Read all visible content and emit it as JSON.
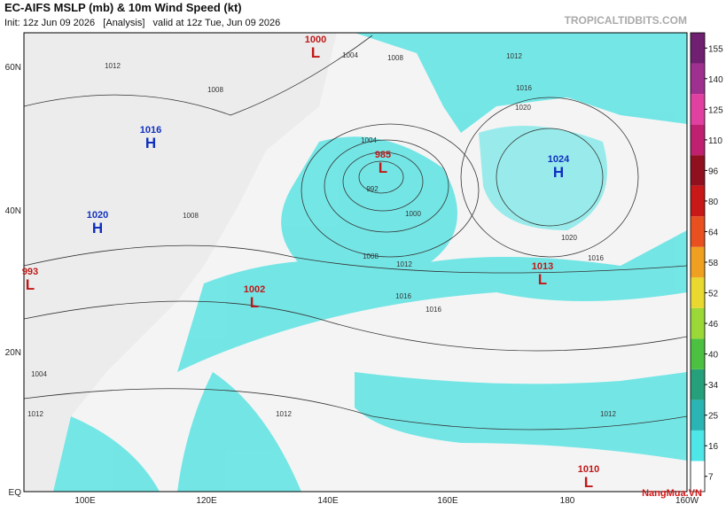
{
  "header": {
    "title": "EC-AIFS MSLP (mb) & 10m Wind Speed (kt)",
    "subtitle": "Init: 12z Jun 09 2026   [Analysis]   valid at 12z Tue, Jun 09 2026",
    "site": "TROPICALTIDBITS.COM"
  },
  "map": {
    "lat_labels": [
      "60N",
      "40N",
      "20N",
      "EQ"
    ],
    "lon_labels": [
      "100E",
      "120E",
      "140E",
      "160E",
      "180",
      "160W"
    ],
    "centers": [
      {
        "value": "1000",
        "letter": "L"
      },
      {
        "value": "1016",
        "letter": "H"
      },
      {
        "value": "985",
        "letter": "L"
      },
      {
        "value": "1024",
        "letter": "H"
      },
      {
        "value": "1020",
        "letter": "H"
      },
      {
        "value": "993",
        "letter": "L"
      },
      {
        "value": "1013",
        "letter": "L"
      },
      {
        "value": "1002",
        "letter": "L"
      },
      {
        "value": "1010",
        "letter": "L"
      }
    ],
    "isobar_labels": [
      "1012",
      "1004",
      "1008",
      "1008",
      "1004",
      "992",
      "1000",
      "1008",
      "1012",
      "1016",
      "1016",
      "1020",
      "1016",
      "1020",
      "1016",
      "1012",
      "1012",
      "1012",
      "1004",
      "1008",
      "1012"
    ]
  },
  "colorbar": {
    "ticks": [
      7,
      16,
      25,
      34,
      40,
      46,
      52,
      58,
      64,
      80,
      96,
      110,
      125,
      140,
      155
    ],
    "colors": [
      "#ffffff",
      "#4ee6e6",
      "#2ab4b4",
      "#26a07a",
      "#4cc040",
      "#9ad838",
      "#e8d830",
      "#f0a020",
      "#e85020",
      "#c81818",
      "#901020",
      "#c02070",
      "#e040a0",
      "#a03090",
      "#702070"
    ]
  },
  "watermark": "NangMua.VN"
}
